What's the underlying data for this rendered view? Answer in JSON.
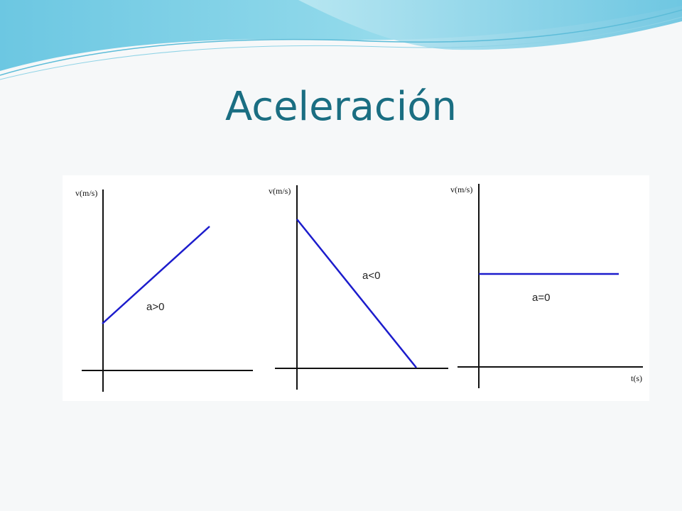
{
  "slide": {
    "title": "Aceleración",
    "colors": {
      "title": "#1a6e82",
      "wave_light": "#b8e9f2",
      "wave_mid": "#7fd0e6",
      "wave_dark": "#4ab3d4",
      "line_blue": "#1c1ccc",
      "axis": "#111111"
    }
  },
  "graphs": [
    {
      "ylabel": "v(m/s)",
      "annotation": "a>0",
      "acceleration": "positive"
    },
    {
      "ylabel": "v(m/s)",
      "annotation": "a<0",
      "acceleration": "negative"
    },
    {
      "ylabel": "v(m/s)",
      "xlabel": "t(s)",
      "annotation": "a=0",
      "acceleration": "zero"
    }
  ]
}
